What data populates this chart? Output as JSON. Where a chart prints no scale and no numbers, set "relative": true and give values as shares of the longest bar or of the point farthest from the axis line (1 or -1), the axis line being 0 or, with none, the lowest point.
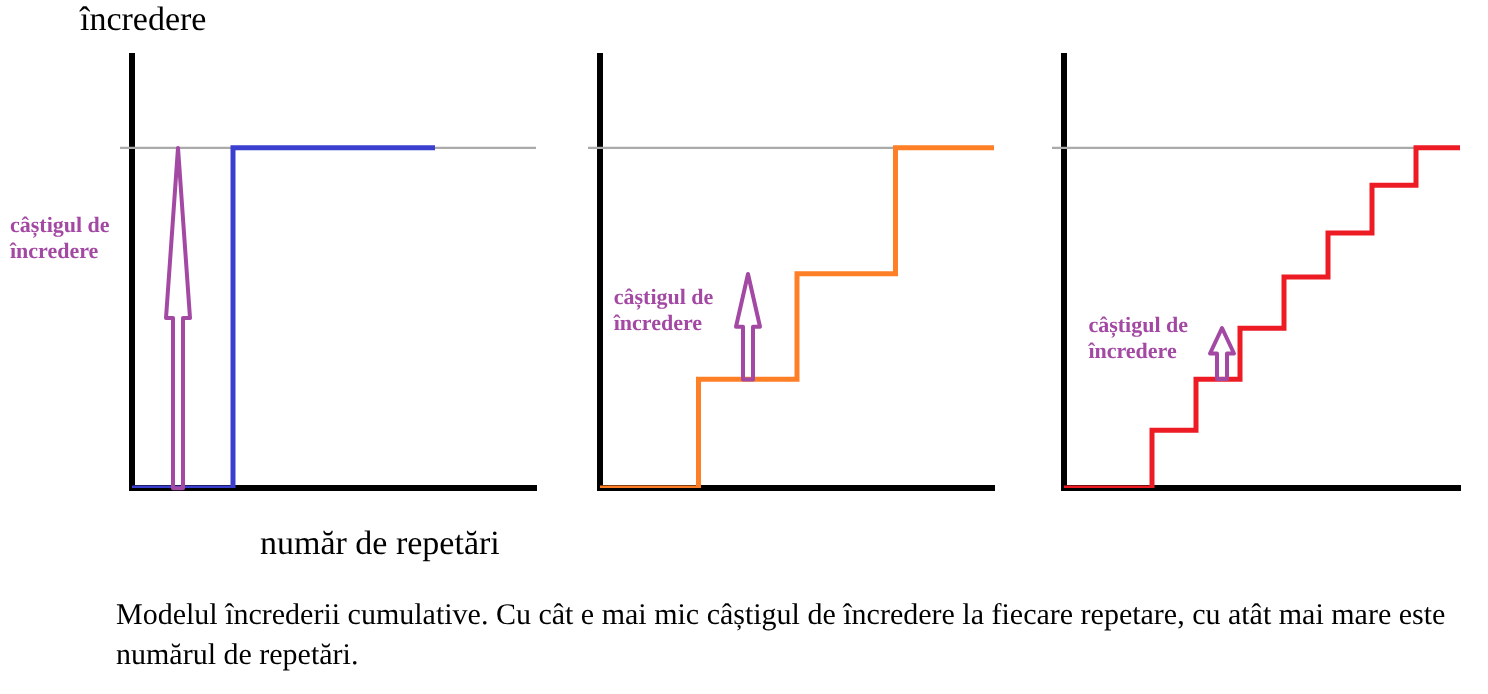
{
  "chart_data": [
    {
      "type": "step",
      "relative": true,
      "ylabel": "încredere",
      "xlabel": "număr de repetări",
      "categories": [
        null,
        null,
        null,
        null,
        null
      ],
      "series": [
        {
          "color": "#3b3fcf",
          "values": [
            0,
            1,
            1,
            1,
            null
          ]
        }
      ],
      "ref_lines": [
        {
          "axis": "y",
          "value": 1,
          "color": "#aaaaaa"
        }
      ],
      "annotations": [
        "câștigul de încredere",
        "Modelul încrederii cumulative. Cu cât e mai mic câștigul de încredere la fiecare repetare, cu atât mai mare este numărul de repetări."
      ]
    },
    {
      "type": "step",
      "relative": true,
      "categories": [
        null,
        null,
        null,
        null,
        null
      ],
      "series": [
        {
          "color": "#ff7f27",
          "values": [
            0,
            0.32,
            0.63,
            1,
            1
          ]
        }
      ],
      "ref_lines": [
        {
          "axis": "y",
          "value": 1,
          "color": "#aaaaaa"
        }
      ],
      "annotations": [
        "câștigul de încredere"
      ]
    },
    {
      "type": "step",
      "relative": true,
      "categories": [
        null,
        null,
        null,
        null,
        null,
        null,
        null,
        null,
        null,
        null
      ],
      "series": [
        {
          "color": "#ed1c24",
          "values": [
            0,
            0,
            0.17,
            0.32,
            0.47,
            0.62,
            0.75,
            0.89,
            1,
            1
          ]
        }
      ],
      "ref_lines": [
        {
          "axis": "y",
          "value": 1,
          "color": "#aaaaaa"
        }
      ],
      "annotations": [
        "câștigul de încredere"
      ]
    }
  ]
}
